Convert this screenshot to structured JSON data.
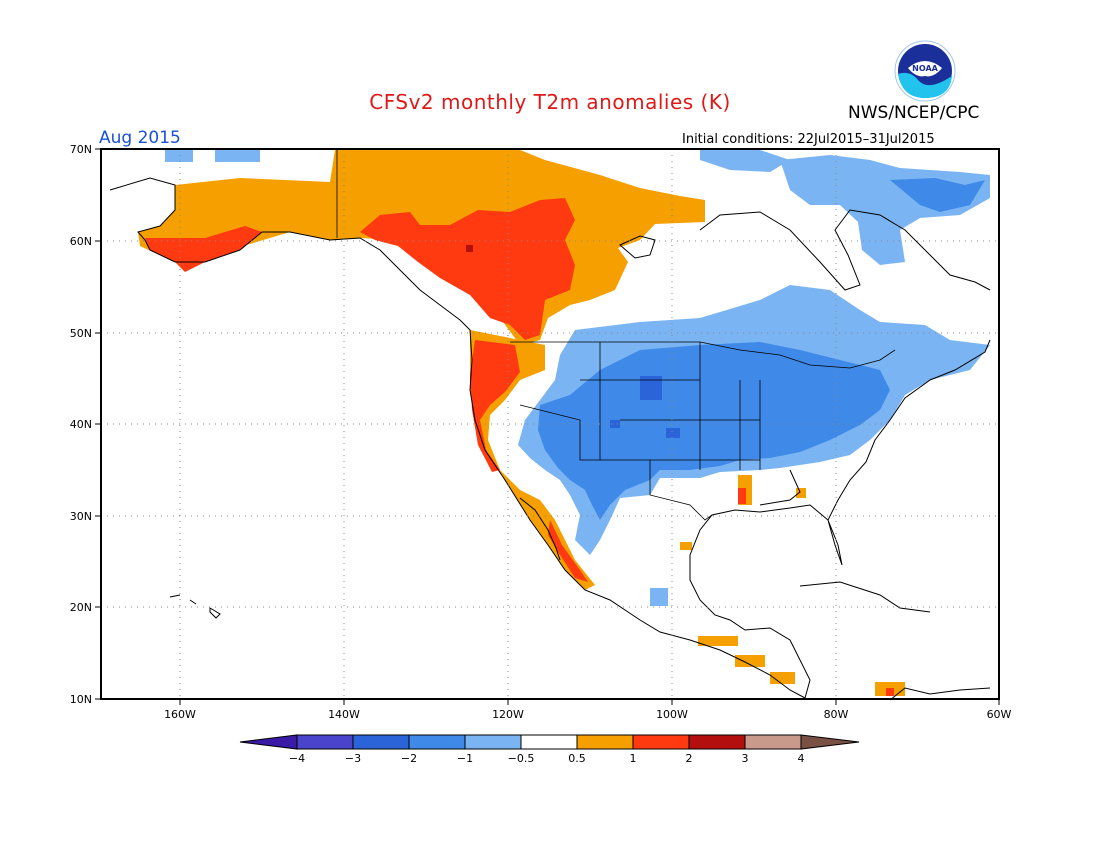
{
  "header": {
    "title": "CFSv2 monthly T2m anomalies (K)",
    "agency": "NWS/NCEP/CPC",
    "logo_text": "NOAA",
    "month": "Aug 2015",
    "initial_conditions": "Initial conditions: 22Jul2015–31Jul2015"
  },
  "axes": {
    "lat_labels": [
      "70N",
      "60N",
      "50N",
      "40N",
      "30N",
      "20N",
      "10N"
    ],
    "lon_labels": [
      "160W",
      "140W",
      "120W",
      "100W",
      "80W",
      "60W"
    ]
  },
  "colorbar": {
    "tick_labels": [
      "−4",
      "−3",
      "−2",
      "−1",
      "−0.5",
      "0.5",
      "1",
      "2",
      "3",
      "4"
    ],
    "colors": [
      "#3a1ba8",
      "#4a44cc",
      "#2a64d8",
      "#3f8ae8",
      "#7ab4f2",
      "#ffffff",
      "#f5a000",
      "#ff3a10",
      "#b40f0f",
      "#c89a8c",
      "#7a5044"
    ]
  },
  "colors": {
    "title": "#e01818",
    "month": "#1a4fd6",
    "warm1": "#f5a000",
    "warm2": "#ff3a10",
    "warm3": "#b40f0f",
    "cool1": "#7ab4f2",
    "cool2": "#3f8ae8",
    "cool3": "#2a64d8"
  }
}
